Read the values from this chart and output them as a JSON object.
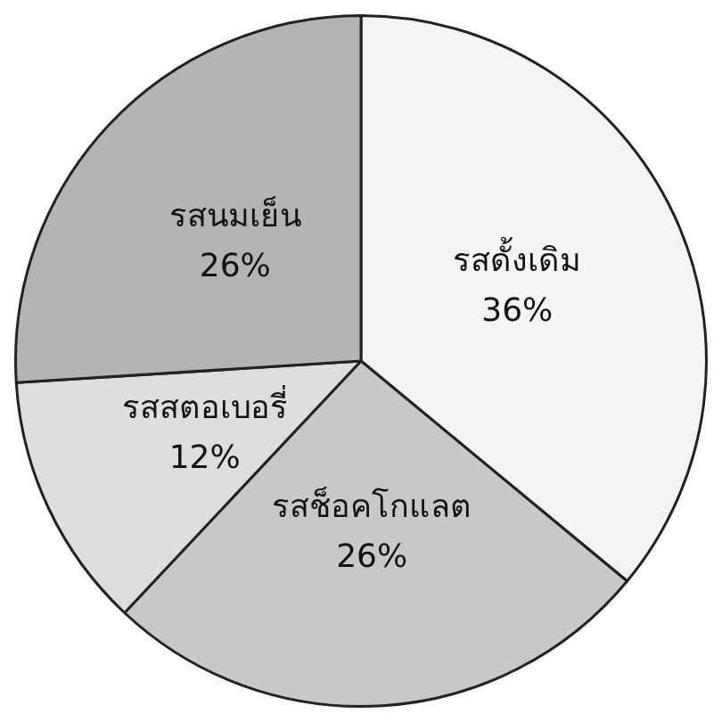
{
  "chart_data": {
    "type": "pie",
    "categories": [
      "รสดั้งเดิม",
      "รสช็อคโกแลต",
      "รสสตอเบอรี่",
      "รสนมเย็น"
    ],
    "values": [
      36,
      26,
      12,
      26
    ],
    "value_labels": [
      "36%",
      "26%",
      "12%",
      "26%"
    ],
    "colors": [
      "#f4f4f4",
      "#c8c8c8",
      "#dedede",
      "#b4b4b4"
    ],
    "legend": false
  }
}
